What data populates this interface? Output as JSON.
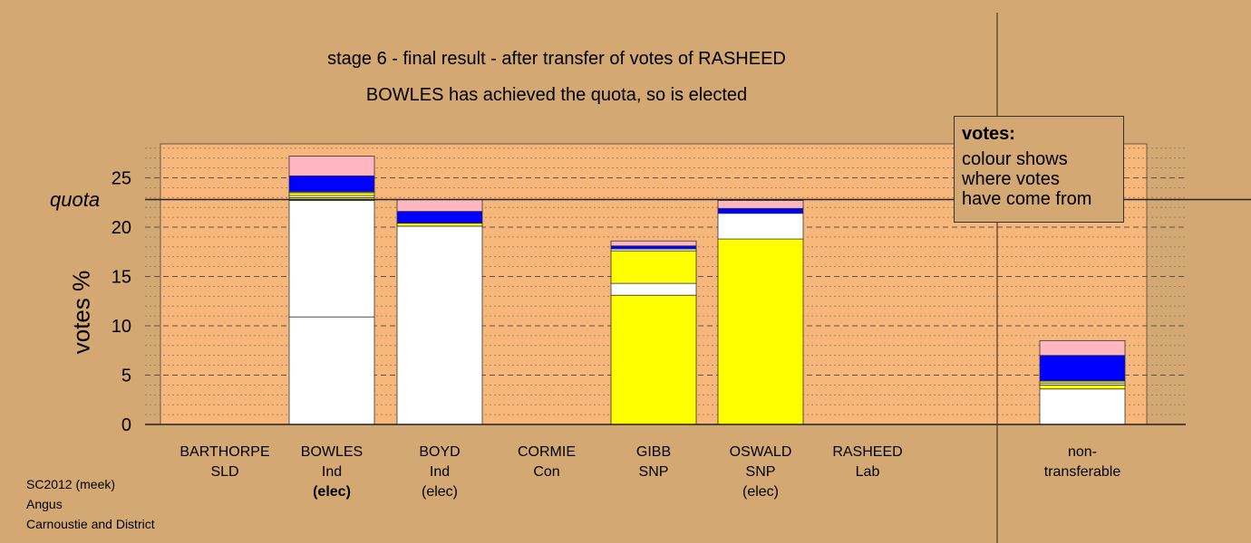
{
  "chart_data": {
    "type": "bar",
    "stacked": true,
    "title": "stage 6 - final result - after transfer of votes of RASHEED",
    "subtitle": "BOWLES has achieved the quota, so is elected",
    "ylabel": "votes %",
    "ylim": [
      0,
      28.5
    ],
    "yticks": [
      0,
      5,
      10,
      15,
      20,
      25
    ],
    "quota": 22.8,
    "quota_label": "quota",
    "grid": true,
    "categories": [
      {
        "name": "BARTHORPE",
        "party": "SLD",
        "status": ""
      },
      {
        "name": "BOWLES",
        "party": "Ind",
        "status": "(elec)"
      },
      {
        "name": "BOYD",
        "party": "Ind",
        "status": "(elec)"
      },
      {
        "name": "CORMIE",
        "party": "Con",
        "status": ""
      },
      {
        "name": "GIBB",
        "party": "SNP",
        "status": ""
      },
      {
        "name": "OSWALD",
        "party": "SNP",
        "status": "(elec)"
      },
      {
        "name": "RASHEED",
        "party": "Lab",
        "status": ""
      },
      {
        "name": "non-",
        "party": "transferable",
        "status": ""
      }
    ],
    "bars": [
      [],
      [
        {
          "color": "#ffffff",
          "value": 10.9
        },
        {
          "color": "#ffffff",
          "value": 11.8
        },
        {
          "color": "#ffff00",
          "value": 0.3
        },
        {
          "color": "#ffffff",
          "value": 0.2
        },
        {
          "color": "#ffff00",
          "value": 0.3
        },
        {
          "color": "#ffffff",
          "value": 0.1
        },
        {
          "color": "#0000ff",
          "value": 1.6
        },
        {
          "color": "#ffb6c1",
          "value": 2.0
        }
      ],
      [
        {
          "color": "#ffffff",
          "value": 20.1
        },
        {
          "color": "#ffff00",
          "value": 0.3
        },
        {
          "color": "#0000ff",
          "value": 1.2
        },
        {
          "color": "#ffb6c1",
          "value": 1.2
        }
      ],
      [],
      [
        {
          "color": "#ffff00",
          "value": 13.1
        },
        {
          "color": "#ffffff",
          "value": 1.2
        },
        {
          "color": "#ffff00",
          "value": 3.3
        },
        {
          "color": "#ffffff",
          "value": 0.2
        },
        {
          "color": "#0000ff",
          "value": 0.3
        },
        {
          "color": "#ffb6c1",
          "value": 0.5
        }
      ],
      [
        {
          "color": "#ffff00",
          "value": 18.8
        },
        {
          "color": "#ffffff",
          "value": 2.6
        },
        {
          "color": "#0000ff",
          "value": 0.5
        },
        {
          "color": "#ffb6c1",
          "value": 0.8
        }
      ],
      [],
      [
        {
          "color": "#ffffff",
          "value": 3.6
        },
        {
          "color": "#ffff00",
          "value": 0.4
        },
        {
          "color": "#ffffff",
          "value": 0.2
        },
        {
          "color": "#ffff00",
          "value": 0.2
        },
        {
          "color": "#0000ff",
          "value": 2.6
        },
        {
          "color": "#ffb6c1",
          "value": 1.5
        }
      ]
    ]
  },
  "legend": {
    "title": "votes:",
    "lines": [
      "colour shows",
      "where votes",
      "have come from"
    ]
  },
  "footer": {
    "lines": [
      "SC2012 (meek)",
      "Angus",
      "Carnoustie and District"
    ]
  },
  "colors": {
    "background": "#d4a873",
    "plot_area": "#f7b77a",
    "transferred_white": "#ffffff",
    "snp_yellow": "#ffff00",
    "blue": "#0000ff",
    "pink": "#ffb6c1"
  }
}
